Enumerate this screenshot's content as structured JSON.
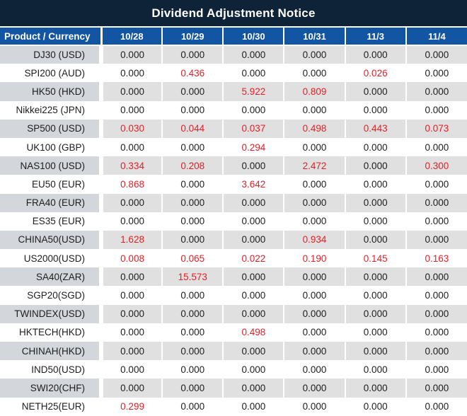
{
  "title": "Dividend Adjustment Notice",
  "colors": {
    "title_bg": "#0e2338",
    "header_bg": "#1155a3",
    "red": "#e61e25",
    "stripe_product": "#d3d6db",
    "stripe_value": "#e0e0e0"
  },
  "table": {
    "product_header": "Product / Currency",
    "date_headers": [
      "10/28",
      "10/29",
      "10/30",
      "10/31",
      "11/3",
      "11/4"
    ],
    "rows": [
      {
        "product": "DJ30 (USD)",
        "values": [
          "0.000",
          "0.000",
          "0.000",
          "0.000",
          "0.000",
          "0.000"
        ],
        "red_cols": []
      },
      {
        "product": "SPI200 (AUD)",
        "values": [
          "0.000",
          "0.436",
          "0.000",
          "0.000",
          "0.026",
          "0.000"
        ],
        "red_cols": [
          1,
          4
        ]
      },
      {
        "product": "HK50 (HKD)",
        "values": [
          "0.000",
          "0.000",
          "5.922",
          "0.809",
          "0.000",
          "0.000"
        ],
        "red_cols": [
          2,
          3
        ]
      },
      {
        "product": "Nikkei225 (JPN)",
        "values": [
          "0.000",
          "0.000",
          "0.000",
          "0.000",
          "0.000",
          "0.000"
        ],
        "red_cols": []
      },
      {
        "product": "SP500 (USD)",
        "values": [
          "0.030",
          "0.044",
          "0.037",
          "0.498",
          "0.443",
          "0.073"
        ],
        "red_cols": [
          0,
          1,
          2,
          3,
          4,
          5
        ]
      },
      {
        "product": "UK100 (GBP)",
        "values": [
          "0.000",
          "0.000",
          "0.294",
          "0.000",
          "0.000",
          "0.000"
        ],
        "red_cols": [
          2
        ]
      },
      {
        "product": "NAS100 (USD)",
        "values": [
          "0.334",
          "0.208",
          "0.000",
          "2.472",
          "0.000",
          "0.300"
        ],
        "red_cols": [
          0,
          1,
          3,
          5
        ]
      },
      {
        "product": "EU50 (EUR)",
        "values": [
          "0.868",
          "0.000",
          "3.642",
          "0.000",
          "0.000",
          "0.000"
        ],
        "red_cols": [
          0,
          2
        ]
      },
      {
        "product": "FRA40 (EUR)",
        "values": [
          "0.000",
          "0.000",
          "0.000",
          "0.000",
          "0.000",
          "0.000"
        ],
        "red_cols": []
      },
      {
        "product": "ES35 (EUR)",
        "values": [
          "0.000",
          "0.000",
          "0.000",
          "0.000",
          "0.000",
          "0.000"
        ],
        "red_cols": []
      },
      {
        "product": "CHINA50(USD)",
        "values": [
          "1.628",
          "0.000",
          "0.000",
          "0.934",
          "0.000",
          "0.000"
        ],
        "red_cols": [
          0,
          3
        ]
      },
      {
        "product": "US2000(USD)",
        "values": [
          "0.008",
          "0.065",
          "0.022",
          "0.190",
          "0.145",
          "0.163"
        ],
        "red_cols": [
          0,
          1,
          2,
          3,
          4,
          5
        ]
      },
      {
        "product": "SA40(ZAR)",
        "values": [
          "0.000",
          "15.573",
          "0.000",
          "0.000",
          "0.000",
          "0.000"
        ],
        "red_cols": [
          1
        ]
      },
      {
        "product": "SGP20(SGD)",
        "values": [
          "0.000",
          "0.000",
          "0.000",
          "0.000",
          "0.000",
          "0.000"
        ],
        "red_cols": []
      },
      {
        "product": "TWINDEX(USD)",
        "values": [
          "0.000",
          "0.000",
          "0.000",
          "0.000",
          "0.000",
          "0.000"
        ],
        "red_cols": []
      },
      {
        "product": "HKTECH(HKD)",
        "values": [
          "0.000",
          "0.000",
          "0.498",
          "0.000",
          "0.000",
          "0.000"
        ],
        "red_cols": [
          2
        ]
      },
      {
        "product": "CHINAH(HKD)",
        "values": [
          "0.000",
          "0.000",
          "0.000",
          "0.000",
          "0.000",
          "0.000"
        ],
        "red_cols": []
      },
      {
        "product": "IND50(USD)",
        "values": [
          "0.000",
          "0.000",
          "0.000",
          "0.000",
          "0.000",
          "0.000"
        ],
        "red_cols": []
      },
      {
        "product": "SWI20(CHF)",
        "values": [
          "0.000",
          "0.000",
          "0.000",
          "0.000",
          "0.000",
          "0.000"
        ],
        "red_cols": []
      },
      {
        "product": "NETH25(EUR)",
        "values": [
          "0.299",
          "0.000",
          "0.000",
          "0.000",
          "0.000",
          "0.000"
        ],
        "red_cols": [
          0
        ]
      }
    ]
  }
}
